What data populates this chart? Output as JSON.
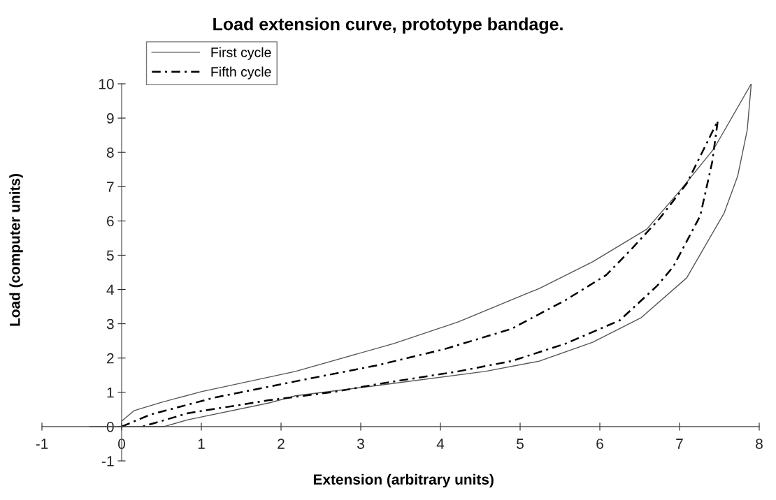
{
  "chart_data": {
    "type": "line",
    "title": "Load extension curve, prototype bandage.",
    "xlabel": "Extension (arbitrary units)",
    "ylabel": "Load (computer units)",
    "xlim": [
      -1,
      8
    ],
    "ylim": [
      -1,
      10
    ],
    "xticks": [
      -1,
      0,
      1,
      2,
      3,
      4,
      5,
      6,
      7,
      8
    ],
    "yticks": [
      -1,
      0,
      1,
      2,
      3,
      4,
      5,
      6,
      7,
      8,
      9,
      10
    ],
    "grid": false,
    "legend": "top left",
    "marker": "none",
    "series": [
      {
        "name": "First cycle",
        "color": "#555555",
        "line_style": "solid",
        "x": [
          0,
          0.16,
          0.5,
          1.0,
          2.18,
          3.41,
          4.22,
          5.24,
          5.91,
          6.59,
          6.99,
          7.43,
          7.9,
          7.85,
          7.73,
          7.56,
          7.09,
          6.52,
          5.91,
          5.24,
          4.56,
          3.21,
          2.18,
          1.85,
          0.83,
          0.53,
          0,
          -0.4
        ],
        "values": [
          0.16,
          0.47,
          0.71,
          1.02,
          1.61,
          2.42,
          3.05,
          4.03,
          4.81,
          5.76,
          6.84,
          8.1,
          10.0,
          8.66,
          7.31,
          6.23,
          4.34,
          3.18,
          2.46,
          1.91,
          1.61,
          1.2,
          0.9,
          0.69,
          0.2,
          0,
          0,
          0
        ]
      },
      {
        "name": "Fifth cycle",
        "color": "#000000",
        "line_style": "dashed",
        "x": [
          0,
          0.36,
          1.17,
          2.18,
          3.21,
          4.05,
          4.89,
          5.57,
          6.08,
          6.41,
          6.75,
          7.09,
          7.48,
          7.41,
          7.26,
          6.92,
          6.72,
          6.25,
          5.57,
          4.89,
          4.22,
          3.21,
          2.69,
          1.85,
          0.83,
          0.26
        ],
        "values": [
          0,
          0.35,
          0.85,
          1.32,
          1.79,
          2.26,
          2.85,
          3.69,
          4.42,
          5.21,
          6.07,
          7.09,
          8.92,
          7.72,
          6.15,
          4.66,
          4.11,
          3.1,
          2.42,
          1.91,
          1.61,
          1.24,
          1.02,
          0.77,
          0.39,
          0
        ]
      }
    ]
  }
}
